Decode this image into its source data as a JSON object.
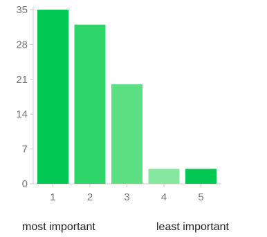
{
  "chart_data": {
    "type": "bar",
    "categories": [
      "1",
      "2",
      "3",
      "4",
      "5"
    ],
    "values": [
      35,
      32,
      20,
      3,
      3
    ],
    "ylim": [
      0,
      35
    ],
    "yticks": [
      0,
      7,
      14,
      21,
      28,
      35
    ],
    "ytick_labels": [
      "0",
      "7",
      "14",
      "21",
      "28",
      "35"
    ],
    "bar_colors": [
      "#00c853",
      "#2ed568",
      "#5ddf83",
      "#86e8a0",
      "#00c853"
    ],
    "axis_color": "#cccccc",
    "grid": false
  },
  "captions": {
    "left": "most important",
    "right": "least important"
  }
}
